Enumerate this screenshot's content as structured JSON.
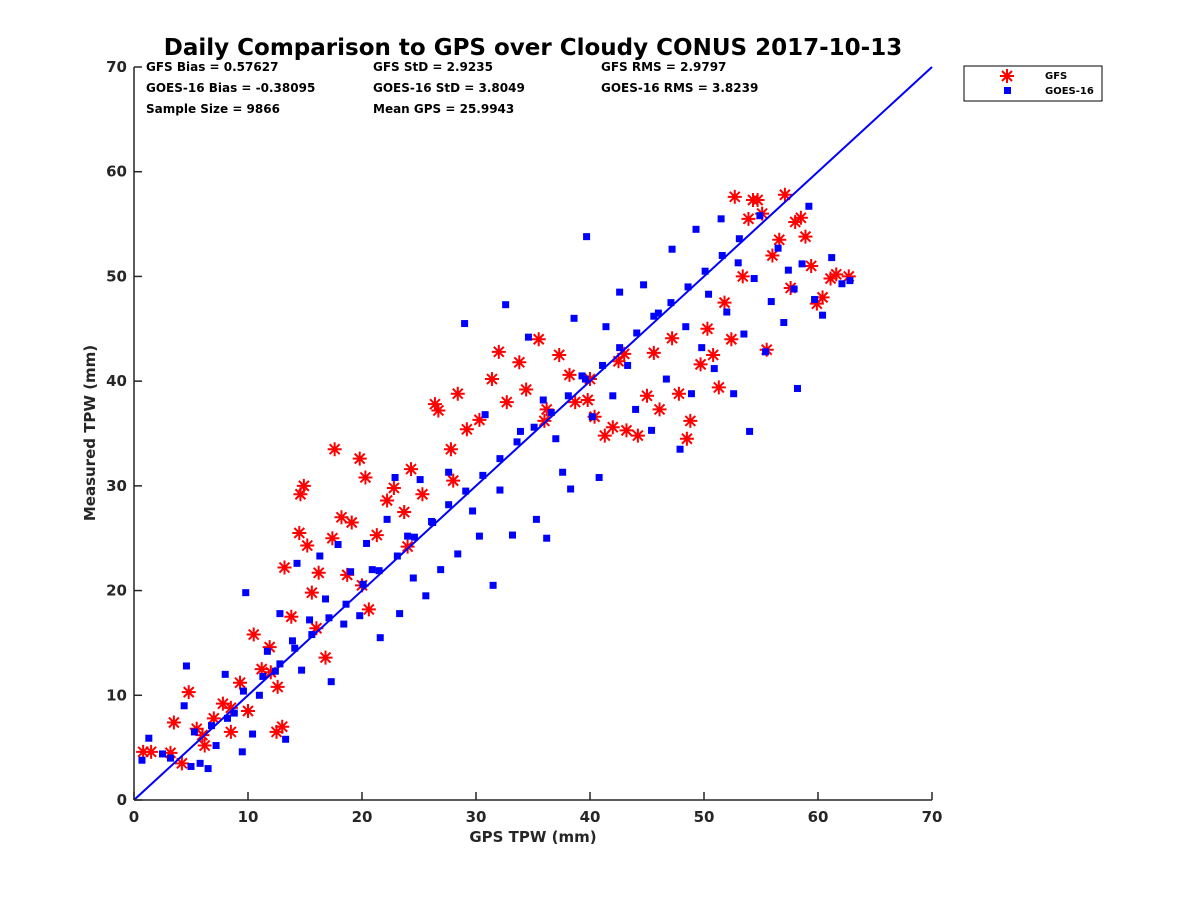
{
  "chart_data": {
    "type": "scatter",
    "title": "Daily Comparison to GPS over Cloudy CONUS 2017-10-13",
    "xlabel": "GPS TPW (mm)",
    "ylabel": "Measured TPW (mm)",
    "xlim": [
      0,
      70
    ],
    "ylim": [
      0,
      70
    ],
    "xticks": [
      "0",
      "10",
      "20",
      "30",
      "40",
      "50",
      "60",
      "70"
    ],
    "yticks": [
      "0",
      "10",
      "20",
      "30",
      "40",
      "50",
      "60",
      "70"
    ],
    "grid": false,
    "legend_position": "outside top-right",
    "stats": [
      [
        "GFS Bias = 0.57627",
        "GFS StD = 2.9235",
        "GFS RMS = 2.9797"
      ],
      [
        "GOES-16 Bias = -0.38095",
        "GOES-16 StD = 3.8049",
        "GOES-16 RMS = 3.8239"
      ],
      [
        "Sample Size = 9866",
        "Mean GPS = 25.9943",
        ""
      ]
    ],
    "reference_line": {
      "x": [
        0,
        70
      ],
      "y": [
        0,
        70
      ],
      "color": "#0000ff"
    },
    "series": [
      {
        "name": "GFS",
        "marker": "asterisk",
        "color": "#ff0000",
        "points": [
          [
            0.8,
            4.6
          ],
          [
            1.5,
            4.6
          ],
          [
            3.2,
            4.5
          ],
          [
            3.5,
            7.4
          ],
          [
            4.2,
            3.5
          ],
          [
            4.8,
            10.3
          ],
          [
            5.5,
            6.8
          ],
          [
            6.2,
            5.2
          ],
          [
            7.0,
            7.8
          ],
          [
            7.8,
            9.2
          ],
          [
            8.5,
            6.5
          ],
          [
            9.3,
            11.2
          ],
          [
            10.0,
            8.5
          ],
          [
            10.5,
            15.8
          ],
          [
            11.2,
            12.5
          ],
          [
            11.9,
            14.6
          ],
          [
            12.6,
            10.8
          ],
          [
            12.5,
            6.5
          ],
          [
            13.0,
            7.0
          ],
          [
            13.2,
            22.2
          ],
          [
            13.8,
            17.5
          ],
          [
            14.5,
            25.5
          ],
          [
            14.6,
            29.2
          ],
          [
            14.9,
            30.0
          ],
          [
            15.2,
            24.3
          ],
          [
            15.6,
            19.8
          ],
          [
            16.2,
            21.7
          ],
          [
            16.8,
            13.6
          ],
          [
            17.4,
            25.0
          ],
          [
            17.6,
            33.5
          ],
          [
            18.2,
            27.0
          ],
          [
            18.7,
            21.5
          ],
          [
            19.1,
            26.5
          ],
          [
            19.8,
            32.6
          ],
          [
            20.3,
            30.8
          ],
          [
            20.6,
            18.2
          ],
          [
            21.3,
            25.3
          ],
          [
            22.2,
            28.6
          ],
          [
            22.8,
            29.8
          ],
          [
            23.7,
            27.5
          ],
          [
            24.3,
            31.6
          ],
          [
            25.3,
            29.2
          ],
          [
            26.4,
            37.8
          ],
          [
            26.7,
            37.2
          ],
          [
            27.8,
            33.5
          ],
          [
            28.4,
            38.8
          ],
          [
            29.2,
            35.4
          ],
          [
            30.3,
            36.3
          ],
          [
            31.4,
            40.2
          ],
          [
            32.0,
            42.8
          ],
          [
            32.7,
            38.0
          ],
          [
            33.8,
            41.8
          ],
          [
            34.4,
            39.2
          ],
          [
            35.5,
            44.0
          ],
          [
            36.2,
            37.3
          ],
          [
            37.3,
            42.5
          ],
          [
            38.2,
            40.6
          ],
          [
            38.7,
            38.0
          ],
          [
            39.8,
            38.2
          ],
          [
            40.4,
            36.6
          ],
          [
            41.3,
            34.8
          ],
          [
            42.0,
            35.6
          ],
          [
            42.5,
            41.9
          ],
          [
            43.2,
            35.3
          ],
          [
            44.2,
            34.8
          ],
          [
            45.0,
            38.6
          ],
          [
            45.6,
            42.7
          ],
          [
            46.1,
            37.3
          ],
          [
            47.2,
            44.1
          ],
          [
            47.8,
            38.8
          ],
          [
            48.5,
            34.5
          ],
          [
            48.8,
            36.2
          ],
          [
            49.7,
            41.6
          ],
          [
            50.3,
            45.0
          ],
          [
            50.8,
            42.5
          ],
          [
            51.3,
            39.4
          ],
          [
            51.8,
            47.5
          ],
          [
            52.4,
            44.0
          ],
          [
            52.7,
            57.6
          ],
          [
            53.4,
            50.0
          ],
          [
            53.9,
            55.5
          ],
          [
            54.3,
            57.3
          ],
          [
            54.7,
            57.3
          ],
          [
            55.1,
            56.0
          ],
          [
            55.5,
            43.0
          ],
          [
            56.0,
            52.0
          ],
          [
            56.6,
            53.5
          ],
          [
            57.1,
            57.8
          ],
          [
            57.6,
            48.9
          ],
          [
            58.0,
            55.2
          ],
          [
            58.5,
            55.6
          ],
          [
            58.9,
            53.8
          ],
          [
            59.4,
            51.0
          ],
          [
            59.9,
            47.4
          ],
          [
            60.4,
            48.0
          ],
          [
            61.1,
            49.8
          ],
          [
            61.6,
            50.2
          ],
          [
            62.7,
            50.0
          ],
          [
            40.0,
            40.2
          ],
          [
            43.0,
            42.6
          ],
          [
            36.0,
            36.2
          ],
          [
            28.0,
            30.5
          ],
          [
            24.0,
            24.2
          ],
          [
            20.0,
            20.5
          ],
          [
            16.0,
            16.4
          ],
          [
            12.0,
            12.2
          ],
          [
            8.5,
            8.8
          ],
          [
            6.0,
            6.2
          ]
        ]
      },
      {
        "name": "GOES-16",
        "marker": "square",
        "color": "#0000ff",
        "points": [
          [
            0.7,
            3.8
          ],
          [
            1.3,
            5.9
          ],
          [
            2.5,
            4.4
          ],
          [
            3.2,
            4.0
          ],
          [
            4.6,
            12.8
          ],
          [
            4.4,
            9.0
          ],
          [
            5.0,
            3.2
          ],
          [
            5.8,
            3.5
          ],
          [
            6.5,
            3.0
          ],
          [
            7.2,
            5.2
          ],
          [
            8.0,
            12.0
          ],
          [
            8.8,
            8.3
          ],
          [
            9.5,
            4.6
          ],
          [
            9.8,
            19.8
          ],
          [
            10.4,
            6.3
          ],
          [
            11.0,
            10.0
          ],
          [
            11.7,
            14.2
          ],
          [
            12.4,
            12.3
          ],
          [
            12.8,
            17.8
          ],
          [
            13.3,
            5.8
          ],
          [
            13.9,
            15.2
          ],
          [
            14.3,
            22.6
          ],
          [
            14.7,
            12.4
          ],
          [
            15.4,
            17.2
          ],
          [
            16.3,
            23.3
          ],
          [
            16.8,
            19.2
          ],
          [
            17.3,
            11.3
          ],
          [
            17.9,
            24.4
          ],
          [
            18.4,
            16.8
          ],
          [
            19.0,
            21.8
          ],
          [
            19.8,
            17.6
          ],
          [
            20.4,
            24.5
          ],
          [
            20.9,
            22.0
          ],
          [
            21.6,
            15.5
          ],
          [
            22.2,
            26.8
          ],
          [
            22.9,
            30.8
          ],
          [
            23.3,
            17.8
          ],
          [
            24.0,
            25.2
          ],
          [
            24.5,
            21.2
          ],
          [
            25.1,
            30.6
          ],
          [
            25.6,
            19.5
          ],
          [
            26.2,
            26.5
          ],
          [
            26.9,
            22.0
          ],
          [
            27.6,
            31.3
          ],
          [
            28.4,
            23.5
          ],
          [
            29.0,
            45.5
          ],
          [
            29.7,
            27.6
          ],
          [
            30.3,
            25.2
          ],
          [
            30.8,
            36.8
          ],
          [
            31.5,
            20.5
          ],
          [
            32.1,
            29.6
          ],
          [
            32.6,
            47.3
          ],
          [
            33.2,
            25.3
          ],
          [
            33.9,
            35.2
          ],
          [
            34.6,
            44.2
          ],
          [
            35.3,
            26.8
          ],
          [
            35.9,
            38.2
          ],
          [
            36.2,
            25.0
          ],
          [
            37.0,
            34.5
          ],
          [
            37.6,
            31.3
          ],
          [
            38.3,
            29.7
          ],
          [
            38.6,
            46.0
          ],
          [
            39.3,
            40.5
          ],
          [
            39.7,
            53.8
          ],
          [
            40.2,
            36.6
          ],
          [
            40.8,
            30.8
          ],
          [
            41.4,
            45.2
          ],
          [
            42.0,
            38.6
          ],
          [
            42.6,
            48.5
          ],
          [
            43.3,
            41.5
          ],
          [
            44.0,
            37.3
          ],
          [
            44.7,
            49.2
          ],
          [
            45.4,
            35.3
          ],
          [
            46.0,
            46.5
          ],
          [
            46.7,
            40.2
          ],
          [
            47.2,
            52.6
          ],
          [
            47.9,
            33.5
          ],
          [
            48.4,
            45.2
          ],
          [
            48.9,
            38.8
          ],
          [
            49.3,
            54.5
          ],
          [
            49.8,
            43.2
          ],
          [
            50.4,
            48.3
          ],
          [
            50.9,
            41.2
          ],
          [
            51.5,
            55.5
          ],
          [
            52.0,
            46.6
          ],
          [
            52.6,
            38.8
          ],
          [
            53.0,
            51.3
          ],
          [
            53.5,
            44.5
          ],
          [
            54.0,
            35.2
          ],
          [
            54.4,
            49.8
          ],
          [
            54.9,
            55.8
          ],
          [
            55.4,
            42.8
          ],
          [
            55.9,
            47.6
          ],
          [
            56.5,
            52.7
          ],
          [
            57.0,
            45.6
          ],
          [
            57.4,
            50.6
          ],
          [
            57.9,
            48.8
          ],
          [
            58.2,
            39.3
          ],
          [
            58.6,
            51.2
          ],
          [
            59.2,
            56.7
          ],
          [
            59.7,
            47.8
          ],
          [
            60.4,
            46.3
          ],
          [
            61.2,
            51.8
          ],
          [
            62.1,
            49.3
          ],
          [
            62.8,
            49.6
          ],
          [
            5.3,
            6.5
          ],
          [
            6.8,
            7.1
          ],
          [
            8.2,
            7.8
          ],
          [
            9.6,
            10.4
          ],
          [
            11.3,
            11.8
          ],
          [
            12.8,
            13.0
          ],
          [
            14.1,
            14.5
          ],
          [
            15.6,
            15.8
          ],
          [
            17.1,
            17.4
          ],
          [
            18.6,
            18.7
          ],
          [
            20.1,
            20.6
          ],
          [
            21.5,
            21.9
          ],
          [
            23.1,
            23.3
          ],
          [
            24.6,
            25.1
          ],
          [
            26.1,
            26.6
          ],
          [
            27.6,
            28.2
          ],
          [
            29.1,
            29.5
          ],
          [
            30.6,
            31.0
          ],
          [
            32.1,
            32.6
          ],
          [
            33.6,
            34.2
          ],
          [
            35.1,
            35.6
          ],
          [
            36.6,
            37.0
          ],
          [
            38.1,
            38.6
          ],
          [
            39.6,
            40.2
          ],
          [
            41.1,
            41.5
          ],
          [
            42.6,
            43.2
          ],
          [
            44.1,
            44.6
          ],
          [
            45.6,
            46.2
          ],
          [
            47.1,
            47.5
          ],
          [
            48.6,
            49.0
          ],
          [
            50.1,
            50.5
          ],
          [
            51.6,
            52.0
          ],
          [
            53.1,
            53.6
          ]
        ]
      }
    ]
  }
}
